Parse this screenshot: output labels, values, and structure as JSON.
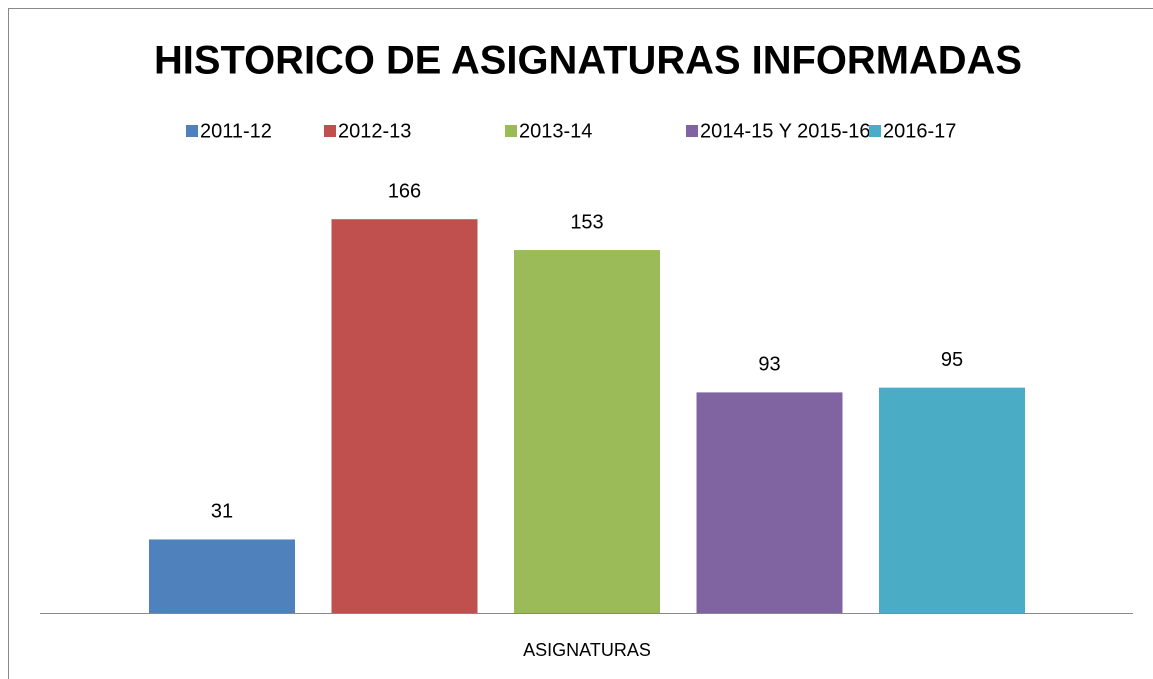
{
  "chart_data": {
    "type": "bar",
    "title": "HISTORICO DE ASIGNATURAS INFORMADAS",
    "categories": [
      "ASIGNATURAS"
    ],
    "series": [
      {
        "name": "2011-12",
        "color": "#4f81bd",
        "values": [
          31
        ]
      },
      {
        "name": "2012-13",
        "color": "#c0504d",
        "values": [
          166
        ]
      },
      {
        "name": "2013-14",
        "color": "#9bbb59",
        "values": [
          153
        ]
      },
      {
        "name": "2014-15 Y 2015-16",
        "color": "#8064a2",
        "values": [
          93
        ]
      },
      {
        "name": "2016-17",
        "color": "#4bacc6",
        "values": [
          95
        ]
      }
    ],
    "ylim": [
      0,
      180
    ],
    "legend": "top"
  }
}
